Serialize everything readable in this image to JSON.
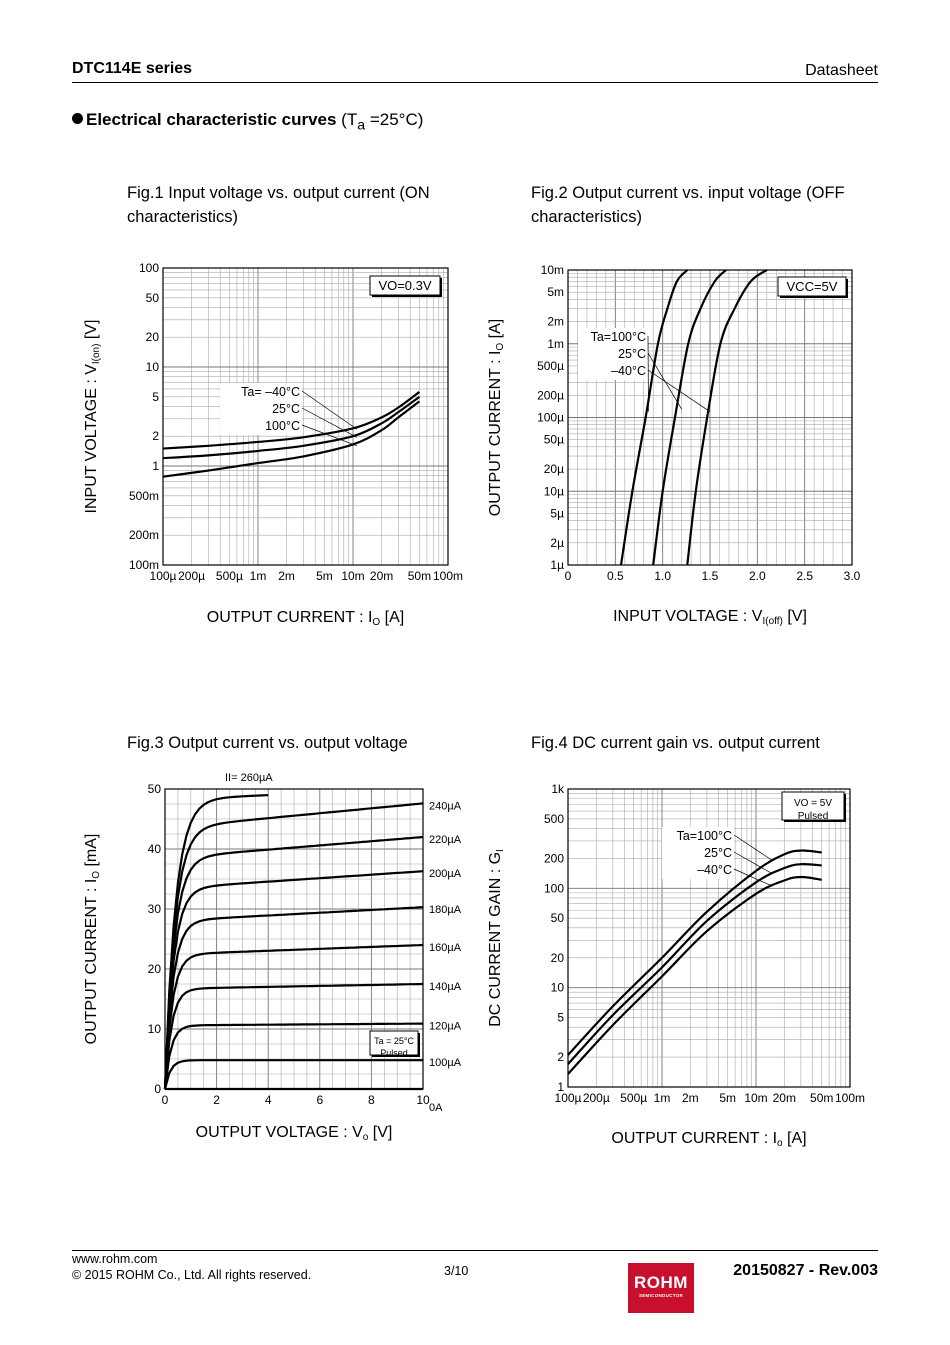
{
  "header": {
    "title": "DTC114E series",
    "doc_type": "Datasheet"
  },
  "section": {
    "title": "Electrical characteristic curves",
    "condition_prefix": "(T",
    "condition_sub": "a",
    "condition_suffix": " =25°C)"
  },
  "captions": {
    "fig1": "Fig.1 Input voltage vs. output current (ON characteristics)",
    "fig2": "Fig.2 Output current vs. input voltage (OFF characteristics)",
    "fig3": "Fig.3 Output current vs. output voltage",
    "fig4": "Fig.4 DC current gain vs. output current"
  },
  "footer": {
    "url": "www.rohm.com",
    "copyright": "© 2015 ROHM Co., Ltd. All rights reserved.",
    "page": "3/10",
    "revision": "20150827 - Rev.003",
    "logo_text": "ROHM",
    "logo_sub": "SEMICONDUCTOR"
  },
  "chart_data": [
    {
      "id": "fig1",
      "type": "line",
      "title": "Fig.1 Input voltage vs. output current (ON characteristics)",
      "xscale": "log",
      "yscale": "log",
      "xlim": [
        0.0001,
        0.1
      ],
      "ylim": [
        0.1,
        100
      ],
      "xlabel": "OUTPUT CURRENT : I",
      "xlabel_sub": "O",
      "xlabel_suffix": " [A]",
      "ylabel": "INPUT VOLTAGE : V",
      "ylabel_sub": "I(on)",
      "ylabel_suffix": " [V]",
      "x_ticks": [
        [
          0.0001,
          "100µ"
        ],
        [
          0.0002,
          "200µ"
        ],
        [
          0.0005,
          "500µ"
        ],
        [
          0.001,
          "1m"
        ],
        [
          0.002,
          "2m"
        ],
        [
          0.005,
          "5m"
        ],
        [
          0.01,
          "10m"
        ],
        [
          0.02,
          "20m"
        ],
        [
          0.05,
          "50m"
        ],
        [
          0.1,
          "100m"
        ]
      ],
      "y_ticks": [
        [
          0.1,
          "100m"
        ],
        [
          0.2,
          "200m"
        ],
        [
          0.5,
          "500m"
        ],
        [
          1,
          "1"
        ],
        [
          2,
          "2"
        ],
        [
          5,
          "5"
        ],
        [
          10,
          "10"
        ],
        [
          20,
          "20"
        ],
        [
          50,
          "50"
        ],
        [
          100,
          "100"
        ]
      ],
      "condition": "VO=0.3V",
      "legend": [
        "Ta= –40°C",
        "25°C",
        "100°C"
      ],
      "series": [
        {
          "name": "Ta=-40°C",
          "x": [
            0.0001,
            0.0003,
            0.001,
            0.003,
            0.01,
            0.02,
            0.03,
            0.05
          ],
          "y": [
            1.5,
            1.6,
            1.75,
            1.95,
            2.4,
            3.1,
            3.9,
            5.6
          ]
        },
        {
          "name": "Ta=25°C",
          "x": [
            0.0001,
            0.0003,
            0.001,
            0.003,
            0.01,
            0.02,
            0.03,
            0.05
          ],
          "y": [
            1.2,
            1.28,
            1.42,
            1.6,
            2.0,
            2.7,
            3.5,
            5.0
          ]
        },
        {
          "name": "Ta=100°C",
          "x": [
            0.0001,
            0.0003,
            0.001,
            0.003,
            0.01,
            0.02,
            0.03,
            0.05
          ],
          "y": [
            0.78,
            0.9,
            1.07,
            1.25,
            1.65,
            2.3,
            3.1,
            4.5
          ]
        }
      ]
    },
    {
      "id": "fig2",
      "type": "line",
      "title": "Fig.2 Output current vs. input voltage (OFF characteristics)",
      "xscale": "linear",
      "yscale": "log",
      "xlim": [
        0,
        3.0
      ],
      "ylim": [
        1e-06,
        0.01
      ],
      "xlabel": "INPUT VOLTAGE : V",
      "xlabel_sub": "I(off)",
      "xlabel_suffix": " [V]",
      "ylabel": "OUTPUT CURRENT : I",
      "ylabel_sub": "O",
      "ylabel_suffix": " [A]",
      "x_ticks": [
        [
          0,
          "0"
        ],
        [
          0.5,
          "0.5"
        ],
        [
          1.0,
          "1.0"
        ],
        [
          1.5,
          "1.5"
        ],
        [
          2.0,
          "2.0"
        ],
        [
          2.5,
          "2.5"
        ],
        [
          3.0,
          "3.0"
        ]
      ],
      "y_ticks": [
        [
          1e-06,
          "1µ"
        ],
        [
          2e-06,
          "2µ"
        ],
        [
          5e-06,
          "5µ"
        ],
        [
          1e-05,
          "10µ"
        ],
        [
          2e-05,
          "20µ"
        ],
        [
          5e-05,
          "50µ"
        ],
        [
          0.0001,
          "100µ"
        ],
        [
          0.0002,
          "200µ"
        ],
        [
          0.0005,
          "500µ"
        ],
        [
          0.001,
          "1m"
        ],
        [
          0.002,
          "2m"
        ],
        [
          0.005,
          "5m"
        ],
        [
          0.01,
          "10m"
        ]
      ],
      "condition": "VCC=5V",
      "legend": [
        "Ta=100°C",
        "25°C",
        "–40°C"
      ],
      "series": [
        {
          "name": "Ta=100°C",
          "x": [
            0.56,
            0.68,
            0.82,
            0.95,
            1.05,
            1.15,
            1.26
          ],
          "y": [
            1e-06,
            1e-05,
            0.0001,
            0.001,
            0.003,
            0.007,
            0.01
          ]
        },
        {
          "name": "Ta=25°C",
          "x": [
            0.9,
            1.0,
            1.13,
            1.27,
            1.4,
            1.55,
            1.67
          ],
          "y": [
            1e-06,
            1e-05,
            0.0001,
            0.001,
            0.003,
            0.007,
            0.01
          ]
        },
        {
          "name": "Ta=-40°C",
          "x": [
            1.26,
            1.35,
            1.47,
            1.61,
            1.76,
            1.93,
            2.1
          ],
          "y": [
            1e-06,
            1e-05,
            0.0001,
            0.001,
            0.003,
            0.007,
            0.01
          ]
        }
      ]
    },
    {
      "id": "fig3",
      "type": "line",
      "title": "Fig.3 Output current vs. output voltage",
      "xscale": "linear",
      "yscale": "linear",
      "xlim": [
        0,
        10
      ],
      "ylim": [
        0,
        50
      ],
      "xlabel": "OUTPUT VOLTAGE : V",
      "xlabel_sub": "o",
      "xlabel_suffix": " [V]",
      "ylabel": "OUTPUT CURRENT : I",
      "ylabel_sub": "O",
      "ylabel_suffix": " [mA]",
      "x_ticks": [
        [
          0,
          "0"
        ],
        [
          2,
          "2"
        ],
        [
          4,
          "4"
        ],
        [
          6,
          "6"
        ],
        [
          8,
          "8"
        ],
        [
          10,
          "10"
        ]
      ],
      "y_ticks": [
        [
          0,
          "0"
        ],
        [
          10,
          "10"
        ],
        [
          20,
          "20"
        ],
        [
          30,
          "30"
        ],
        [
          40,
          "40"
        ],
        [
          50,
          "50"
        ]
      ],
      "condition_lines": [
        "Ta = 25°C",
        "Pulsed"
      ],
      "top_label": "II= 260µA",
      "series": [
        {
          "name": "0A",
          "sat": 0.0,
          "end": 0.0
        },
        {
          "name": "100µA",
          "sat": 4.8,
          "end": 4.8
        },
        {
          "name": "120µA",
          "sat": 10.6,
          "end": 10.9
        },
        {
          "name": "140µA",
          "sat": 16.7,
          "end": 17.5
        },
        {
          "name": "160µA",
          "sat": 22.4,
          "end": 24.0
        },
        {
          "name": "180µA",
          "sat": 28.0,
          "end": 30.3
        },
        {
          "name": "200µA",
          "sat": 33.4,
          "end": 36.3
        },
        {
          "name": "220µA",
          "sat": 38.5,
          "end": 42.0
        },
        {
          "name": "240µA",
          "sat": 43.5,
          "end": 47.6
        },
        {
          "name": "260µA",
          "sat": 48.3,
          "end": 50.0
        }
      ]
    },
    {
      "id": "fig4",
      "type": "line",
      "title": "Fig.4 DC current gain vs. output current",
      "xscale": "log",
      "yscale": "log",
      "xlim": [
        0.0001,
        0.1
      ],
      "ylim": [
        1,
        1000
      ],
      "xlabel": "OUTPUT CURRENT : I",
      "xlabel_sub": "o",
      "xlabel_suffix": " [A]",
      "ylabel": "DC CURRENT GAIN : G",
      "ylabel_sub": "I",
      "ylabel_suffix": "",
      "x_ticks": [
        [
          0.0001,
          "100µ"
        ],
        [
          0.0002,
          "200µ"
        ],
        [
          0.0005,
          "500µ"
        ],
        [
          0.001,
          "1m"
        ],
        [
          0.002,
          "2m"
        ],
        [
          0.005,
          "5m"
        ],
        [
          0.01,
          "10m"
        ],
        [
          0.02,
          "20m"
        ],
        [
          0.05,
          "50m"
        ],
        [
          0.1,
          "100m"
        ]
      ],
      "y_ticks": [
        [
          1,
          "1"
        ],
        [
          2,
          "2"
        ],
        [
          5,
          "5"
        ],
        [
          10,
          "10"
        ],
        [
          20,
          "20"
        ],
        [
          50,
          "50"
        ],
        [
          100,
          "100"
        ],
        [
          200,
          "200"
        ],
        [
          500,
          "500"
        ],
        [
          1000,
          "1k"
        ]
      ],
      "condition_lines": [
        "VO = 5V",
        "Pulsed"
      ],
      "legend": [
        "Ta=100°C",
        "25°C",
        "–40°C"
      ],
      "series": [
        {
          "name": "Ta=100°C",
          "x": [
            0.0001,
            0.0003,
            0.001,
            0.003,
            0.01,
            0.02,
            0.03,
            0.05
          ],
          "y": [
            2.1,
            6.5,
            20,
            58,
            150,
            220,
            240,
            230
          ]
        },
        {
          "name": "Ta=25°C",
          "x": [
            0.0001,
            0.0003,
            0.001,
            0.003,
            0.01,
            0.02,
            0.03,
            0.05
          ],
          "y": [
            1.7,
            5.3,
            16,
            47,
            115,
            160,
            175,
            170
          ]
        },
        {
          "name": "Ta=-40°C",
          "x": [
            0.0001,
            0.0003,
            0.001,
            0.003,
            0.01,
            0.02,
            0.03,
            0.05
          ],
          "y": [
            1.35,
            4.2,
            13,
            37,
            88,
            120,
            130,
            122
          ]
        }
      ]
    }
  ]
}
